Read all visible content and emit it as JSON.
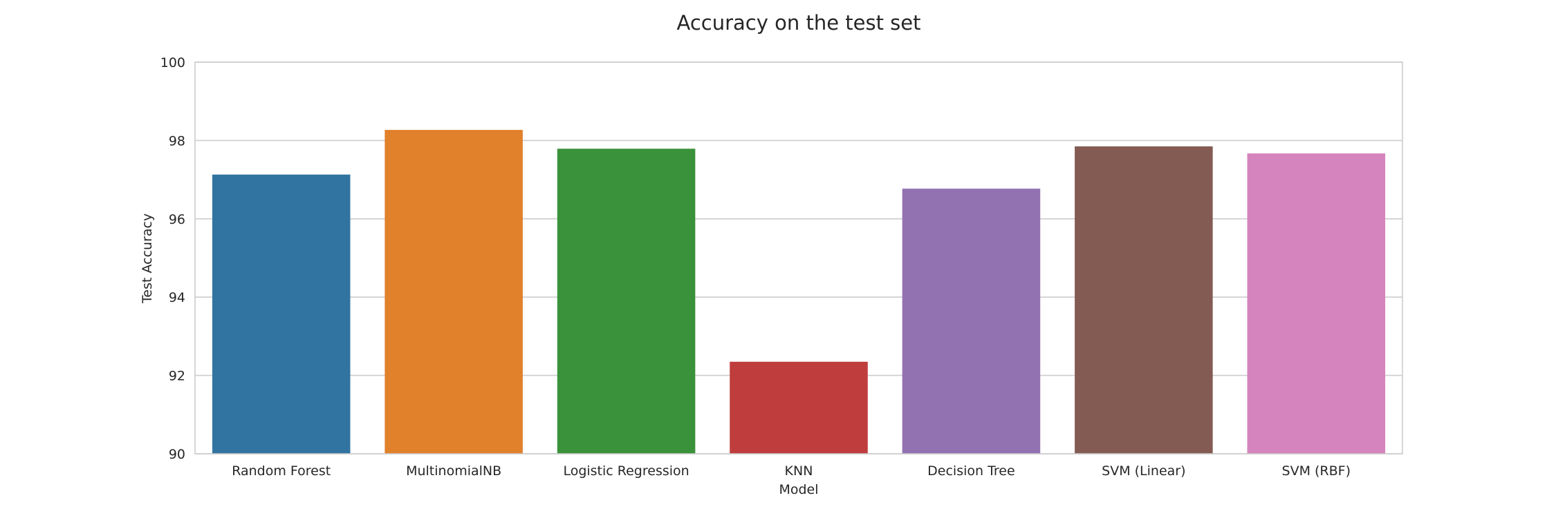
{
  "chart_data": {
    "type": "bar",
    "title": "Accuracy on the test set",
    "xlabel": "Model",
    "ylabel": "Test Accuracy",
    "categories": [
      "Random Forest",
      "MultinomialNB",
      "Logistic Regression",
      "KNN",
      "Decision Tree",
      "SVM (Linear)",
      "SVM (RBF)"
    ],
    "values": [
      97.13,
      98.27,
      97.79,
      92.35,
      96.77,
      97.85,
      97.67
    ],
    "colors": [
      "#3274a1",
      "#e1812c",
      "#3a923a",
      "#c03d3e",
      "#9372b2",
      "#845b53",
      "#d684bd"
    ],
    "ylim": [
      90,
      100
    ],
    "yticks": [
      "90",
      "92",
      "94",
      "96",
      "98",
      "100"
    ],
    "grid": "horizontal",
    "legend": "none"
  }
}
